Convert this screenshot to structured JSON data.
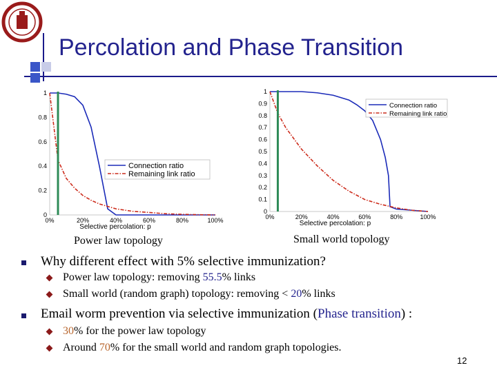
{
  "slide": {
    "title": "Percolation and Phase Transition",
    "page_number": "12",
    "caption_left": "Power law topology",
    "caption_right": "Small world topology",
    "bullets": [
      {
        "text": "Why different effect with 5% selective immunization?",
        "subs": [
          {
            "parts": [
              {
                "t": "Power law topology:  removing "
              },
              {
                "t": "55.5",
                "c": "blue"
              },
              {
                "t": "% links"
              }
            ]
          },
          {
            "parts": [
              {
                "t": "Small world (random graph) topology: removing < "
              },
              {
                "t": "20",
                "c": "blue"
              },
              {
                "t": "% links"
              }
            ]
          }
        ]
      },
      {
        "parts": [
          {
            "t": "Email worm prevention via selective immunization ("
          },
          {
            "t": "Phase transition",
            "c": "blue"
          },
          {
            "t": ") :"
          }
        ],
        "subs": [
          {
            "parts": [
              {
                "t": "30",
                "c": "orange"
              },
              {
                "t": "% for the power law topology"
              }
            ]
          },
          {
            "parts": [
              {
                "t": "Around "
              },
              {
                "t": "70",
                "c": "orange"
              },
              {
                "t": "% for the small world and random graph topologies."
              }
            ]
          }
        ]
      }
    ]
  },
  "colors": {
    "title": "#23238e",
    "connection": "#1a2ab8",
    "remaining": "#cc2a1a",
    "marker": "#2e8b57"
  },
  "chart_data": [
    {
      "type": "line",
      "xlabel": "Selective percolation: p",
      "xticks": [
        "0%",
        "20%",
        "40%",
        "60%",
        "80%",
        "100%"
      ],
      "yticks": [
        "0",
        "0.2",
        "0.4",
        "0.6",
        "0.8",
        "1"
      ],
      "xlim": [
        0,
        1
      ],
      "ylim": [
        0,
        1
      ],
      "legend": "center-right",
      "marker_x": 0.05,
      "series": [
        {
          "name": "Connection ratio",
          "style": "solid",
          "x": [
            0,
            0.05,
            0.1,
            0.15,
            0.2,
            0.25,
            0.3,
            0.35,
            0.4,
            0.5,
            0.6,
            0.7,
            0.8,
            0.9,
            1.0
          ],
          "y": [
            1.0,
            1.0,
            0.99,
            0.97,
            0.9,
            0.72,
            0.4,
            0.05,
            0.0,
            0.0,
            0.0,
            0.0,
            0.0,
            0.0,
            0.0
          ]
        },
        {
          "name": "Remaining link ratio",
          "style": "dashdot",
          "x": [
            0,
            0.05,
            0.1,
            0.15,
            0.2,
            0.25,
            0.3,
            0.35,
            0.4,
            0.5,
            0.6,
            0.7,
            0.8,
            0.9,
            1.0
          ],
          "y": [
            1.0,
            0.45,
            0.3,
            0.22,
            0.16,
            0.12,
            0.09,
            0.07,
            0.05,
            0.03,
            0.02,
            0.01,
            0.005,
            0.002,
            0.0
          ]
        }
      ]
    },
    {
      "type": "line",
      "xlabel": "Selective percolation: p",
      "xticks": [
        "0%",
        "20%",
        "40%",
        "60%",
        "80%",
        "100%"
      ],
      "yticks": [
        "0",
        "0.1",
        "0.2",
        "0.3",
        "0.4",
        "0.5",
        "0.6",
        "0.7",
        "0.8",
        "0.9",
        "1"
      ],
      "xlim": [
        0,
        1
      ],
      "ylim": [
        0,
        1
      ],
      "legend": "top-right",
      "marker_x": 0.05,
      "series": [
        {
          "name": "Connection ratio",
          "style": "solid",
          "x": [
            0,
            0.1,
            0.2,
            0.3,
            0.4,
            0.5,
            0.55,
            0.6,
            0.65,
            0.7,
            0.73,
            0.75,
            0.76,
            0.8,
            0.9,
            1.0
          ],
          "y": [
            1.0,
            1.0,
            1.0,
            0.99,
            0.97,
            0.93,
            0.89,
            0.84,
            0.76,
            0.6,
            0.45,
            0.3,
            0.04,
            0.02,
            0.01,
            0.0
          ]
        },
        {
          "name": "Remaining link ratio",
          "style": "dashdot",
          "x": [
            0,
            0.05,
            0.1,
            0.2,
            0.3,
            0.4,
            0.5,
            0.6,
            0.7,
            0.8,
            0.9,
            1.0
          ],
          "y": [
            1.0,
            0.82,
            0.7,
            0.52,
            0.38,
            0.26,
            0.17,
            0.1,
            0.06,
            0.03,
            0.01,
            0.0
          ]
        }
      ]
    }
  ]
}
